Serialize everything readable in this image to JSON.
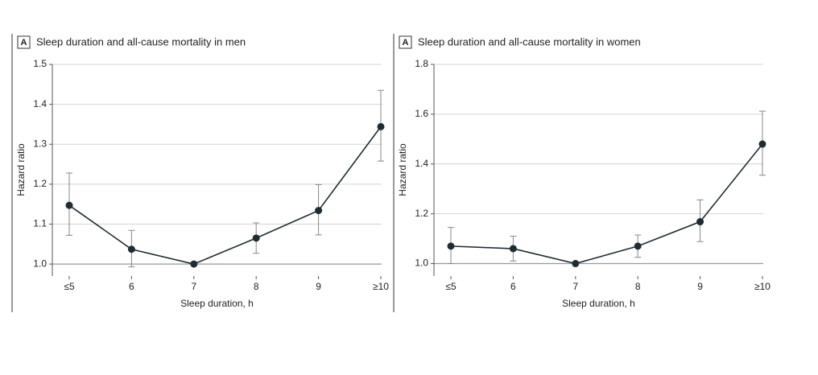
{
  "chart_data": [
    {
      "type": "line",
      "panel": "A",
      "title": "Sleep duration and all-cause mortality in men",
      "x_label": "Sleep duration, h",
      "y_label": "Hazard ratio",
      "categories": [
        "≤5",
        "6",
        "7",
        "8",
        "9",
        "≥10"
      ],
      "values": [
        1.147,
        1.037,
        1.0,
        1.065,
        1.134,
        1.344
      ],
      "ci_lower": [
        1.072,
        0.993,
        null,
        1.027,
        1.073,
        1.258
      ],
      "ci_upper": [
        1.228,
        1.084,
        null,
        1.103,
        1.199,
        1.435
      ],
      "color": "#1f2d33",
      "ylim": [
        0.97,
        1.5
      ],
      "yticks": [
        {
          "value": 1,
          "label": "1.0"
        },
        1.1,
        1.2,
        1.3,
        1.4,
        1.5
      ],
      "grid": true
    },
    {
      "type": "line",
      "panel": "A",
      "title": "Sleep duration and all-cause mortality in women",
      "x_label": "Sleep duration, h",
      "y_label": "Hazard ratio",
      "categories": [
        "≤5",
        "6",
        "7",
        "8",
        "9",
        "≥10"
      ],
      "values": [
        1.07,
        1.06,
        1.0,
        1.07,
        1.168,
        1.48
      ],
      "ci_lower": [
        1.0,
        1.01,
        null,
        1.025,
        1.088,
        1.355
      ],
      "ci_upper": [
        1.145,
        1.11,
        null,
        1.115,
        1.256,
        1.612
      ],
      "color": "#1f2d33",
      "ylim": [
        0.95,
        1.8
      ],
      "yticks": [
        {
          "value": 1,
          "label": "1.0"
        },
        1.2,
        1.4,
        1.6,
        {
          "value": 1.8,
          "label": "1.8"
        }
      ],
      "grid": true
    }
  ]
}
